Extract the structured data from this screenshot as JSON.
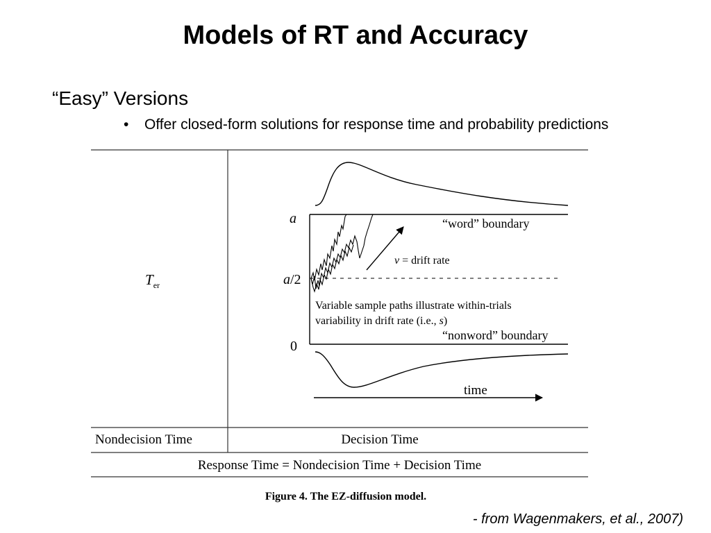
{
  "slide": {
    "title": "Models of RT and Accuracy",
    "heading": "“Easy” Versions",
    "bullet_marker": "•",
    "bullet": "Offer closed-form solutions for response time and probability predictions",
    "credit": "- from Wagenmakers, et al., 2007)"
  },
  "figure": {
    "ter_main": "T",
    "ter_sub": "er",
    "label_a": "a",
    "label_a_half_var": "a",
    "label_a_half_rest": "/2",
    "label_zero": "0",
    "word_boundary": "“word” boundary",
    "drift_var": "v",
    "drift_rest": " = drift rate",
    "variable_line1": "Variable sample paths illustrate within-trials",
    "variable_line2": "variability in drift rate (i.e., ",
    "variable_line2_var": "s",
    "variable_line2_end": ")",
    "nonword_boundary": "“nonword” boundary",
    "time_label": "time",
    "nondecision_time": "Nondecision Time",
    "decision_time": "Decision Time",
    "response_time_equation": "Response Time = Nondecision Time + Decision Time",
    "caption": "Figure 4. The EZ-diffusion model."
  }
}
